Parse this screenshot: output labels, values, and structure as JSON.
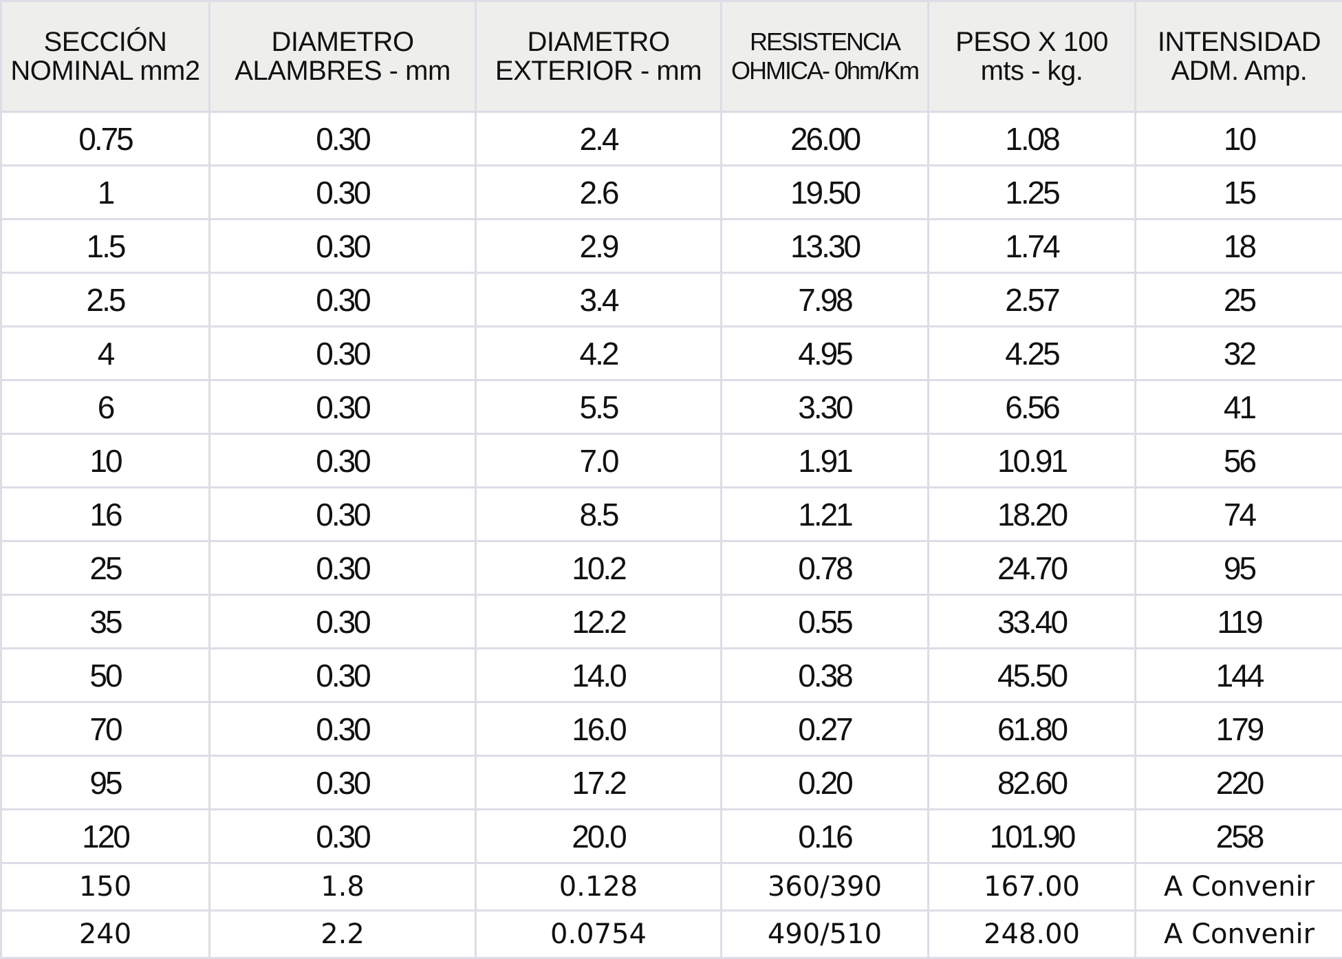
{
  "table": {
    "headers": [
      [
        "SECCIÓN",
        "NOMINAL mm2"
      ],
      [
        "DIAMETRO",
        "ALAMBRES - mm"
      ],
      [
        "DIAMETRO",
        "EXTERIOR - mm"
      ],
      [
        "RESISTENCIA",
        "OHMICA- 0hm/Km"
      ],
      [
        "PESO X 100",
        "mts - kg."
      ],
      [
        "INTENSIDAD",
        "ADM. Amp."
      ]
    ],
    "rows": [
      [
        "0.75",
        "0.30",
        "2.4",
        "26.00",
        "1.08",
        "10"
      ],
      [
        "1",
        "0.30",
        "2.6",
        "19.50",
        "1.25",
        "15"
      ],
      [
        "1.5",
        "0.30",
        "2.9",
        "13.30",
        "1.74",
        "18"
      ],
      [
        "2.5",
        "0.30",
        "3.4",
        "7.98",
        "2.57",
        "25"
      ],
      [
        "4",
        "0.30",
        "4.2",
        "4.95",
        "4.25",
        "32"
      ],
      [
        "6",
        "0.30",
        "5.5",
        "3.30",
        "6.56",
        "41"
      ],
      [
        "10",
        "0.30",
        "7.0",
        "1.91",
        "10.91",
        "56"
      ],
      [
        "16",
        "0.30",
        "8.5",
        "1.21",
        "18.20",
        "74"
      ],
      [
        "25",
        "0.30",
        "10.2",
        "0.78",
        "24.70",
        "95"
      ],
      [
        "35",
        "0.30",
        "12.2",
        "0.55",
        "33.40",
        "119"
      ],
      [
        "50",
        "0.30",
        "14.0",
        "0.38",
        "45.50",
        "144"
      ],
      [
        "70",
        "0.30",
        "16.0",
        "0.27",
        "61.80",
        "179"
      ],
      [
        "95",
        "0.30",
        "17.2",
        "0.20",
        "82.60",
        "220"
      ],
      [
        "120",
        "0.30",
        "20.0",
        "0.16",
        "101.90",
        "258"
      ],
      [
        "150",
        "1.8",
        "0.128",
        "360/390",
        "167.00",
        "A Convenir"
      ],
      [
        "240",
        "2.2",
        "0.0754",
        "490/510",
        "248.00",
        "A Convenir"
      ]
    ]
  }
}
